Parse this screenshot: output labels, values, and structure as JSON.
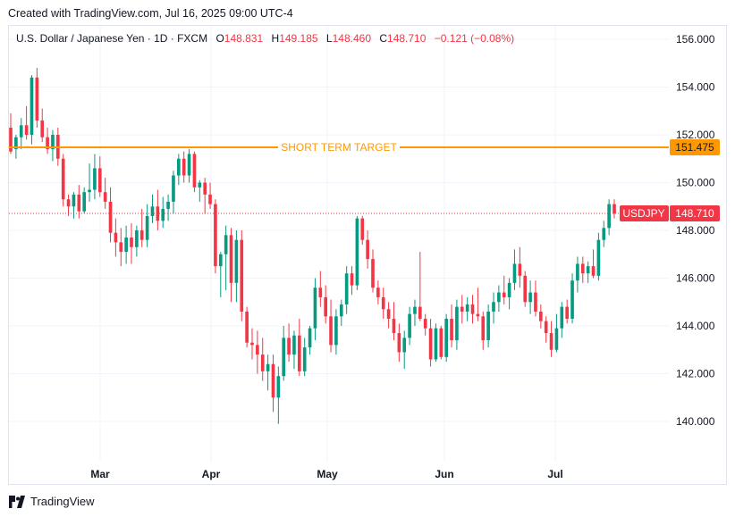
{
  "header": {
    "created_text": "Created with TradingView.com, Jul 16, 2025 09:00 UTC-4"
  },
  "legend": {
    "symbol": "U.S. Dollar / Japanese Yen · 1D · FXCM",
    "o_label": "O",
    "o_value": "148.831",
    "h_label": "H",
    "h_value": "149.185",
    "l_label": "L",
    "l_value": "148.460",
    "c_label": "C",
    "c_value": "148.710",
    "change": "−0.121 (−0.08%)"
  },
  "footer": {
    "brand": "TradingView"
  },
  "colors": {
    "up": "#089981",
    "down": "#f23645",
    "target": "#ff9800",
    "grid": "#f0f3fa"
  },
  "chart_data": {
    "type": "candlestick",
    "y_ticks": [
      "156.000",
      "154.000",
      "152.000",
      "150.000",
      "148.000",
      "146.000",
      "144.000",
      "142.000",
      "140.000"
    ],
    "y_tick_values": [
      156,
      154,
      152,
      150,
      148,
      146,
      144,
      142,
      140
    ],
    "x_labels": [
      "Mar",
      "Apr",
      "May",
      "Jun",
      "Jul"
    ],
    "ylim": [
      138.5,
      157.2
    ],
    "horizontal_line": {
      "label": "SHORT TERM TARGET",
      "value": 151.475,
      "value_label": "151.475"
    },
    "last_price": {
      "symbol": "USDJPY",
      "value": 148.71,
      "value_label": "148.710"
    },
    "candles": [
      [
        152.3,
        152.9,
        151.2,
        151.3
      ],
      [
        151.4,
        152.0,
        151.0,
        151.9
      ],
      [
        151.9,
        152.7,
        151.4,
        152.4
      ],
      [
        152.4,
        153.2,
        151.8,
        152.0
      ],
      [
        152.0,
        154.5,
        151.6,
        154.4
      ],
      [
        154.4,
        154.8,
        152.3,
        152.6
      ],
      [
        152.6,
        153.1,
        151.7,
        151.9
      ],
      [
        151.9,
        152.3,
        151.2,
        151.4
      ],
      [
        151.4,
        152.2,
        150.9,
        152.0
      ],
      [
        152.0,
        152.3,
        150.7,
        151.0
      ],
      [
        151.0,
        151.2,
        149.0,
        149.3
      ],
      [
        149.3,
        149.5,
        148.6,
        149.0
      ],
      [
        149.0,
        149.6,
        148.5,
        149.5
      ],
      [
        149.5,
        149.9,
        148.5,
        148.8
      ],
      [
        148.8,
        149.8,
        148.7,
        149.6
      ],
      [
        149.6,
        150.8,
        149.2,
        149.7
      ],
      [
        149.7,
        151.2,
        149.3,
        150.6
      ],
      [
        150.6,
        151.1,
        149.4,
        149.6
      ],
      [
        149.6,
        150.2,
        148.9,
        149.2
      ],
      [
        149.2,
        149.8,
        147.5,
        147.9
      ],
      [
        147.9,
        148.5,
        146.9,
        147.5
      ],
      [
        147.5,
        148.1,
        146.5,
        147.1
      ],
      [
        147.1,
        148.2,
        146.6,
        147.7
      ],
      [
        147.7,
        148.3,
        146.6,
        147.3
      ],
      [
        147.3,
        148.2,
        146.9,
        148.0
      ],
      [
        148.0,
        148.9,
        147.3,
        147.6
      ],
      [
        147.6,
        149.1,
        147.3,
        148.6
      ],
      [
        148.6,
        149.5,
        148.3,
        149.0
      ],
      [
        149.0,
        149.7,
        148.0,
        148.4
      ],
      [
        148.4,
        149.4,
        148.1,
        148.9
      ],
      [
        148.9,
        149.5,
        148.4,
        149.2
      ],
      [
        149.2,
        150.5,
        148.7,
        150.3
      ],
      [
        150.3,
        151.2,
        149.9,
        151.0
      ],
      [
        151.0,
        151.3,
        150.0,
        150.3
      ],
      [
        150.3,
        151.4,
        150.0,
        151.2
      ],
      [
        151.2,
        151.3,
        149.6,
        149.8
      ],
      [
        149.8,
        150.1,
        149.2,
        150.0
      ],
      [
        150.0,
        150.2,
        148.7,
        149.5
      ],
      [
        149.5,
        150.0,
        148.9,
        149.1
      ],
      [
        149.1,
        149.3,
        146.2,
        146.5
      ],
      [
        146.5,
        147.1,
        145.2,
        147.0
      ],
      [
        147.0,
        148.2,
        145.5,
        147.8
      ],
      [
        147.8,
        148.1,
        145.0,
        145.8
      ],
      [
        145.8,
        148.0,
        145.0,
        147.6
      ],
      [
        147.6,
        148.0,
        144.2,
        144.6
      ],
      [
        144.6,
        144.8,
        143.1,
        143.3
      ],
      [
        143.3,
        143.9,
        142.6,
        143.2
      ],
      [
        143.2,
        143.8,
        142.0,
        142.8
      ],
      [
        142.8,
        143.5,
        141.7,
        142.1
      ],
      [
        142.1,
        142.8,
        141.3,
        142.4
      ],
      [
        142.4,
        142.8,
        140.4,
        141.0
      ],
      [
        141.0,
        142.3,
        139.9,
        141.9
      ],
      [
        141.9,
        144.0,
        141.7,
        143.5
      ],
      [
        143.5,
        144.1,
        142.5,
        142.8
      ],
      [
        142.8,
        143.8,
        142.2,
        143.6
      ],
      [
        143.6,
        144.3,
        141.9,
        142.1
      ],
      [
        142.1,
        143.5,
        141.9,
        143.1
      ],
      [
        143.1,
        144.0,
        142.8,
        143.9
      ],
      [
        143.9,
        146.0,
        143.4,
        145.6
      ],
      [
        145.6,
        146.3,
        144.8,
        145.2
      ],
      [
        145.2,
        145.7,
        144.1,
        144.4
      ],
      [
        144.4,
        145.1,
        142.9,
        143.2
      ],
      [
        143.2,
        144.7,
        142.8,
        144.4
      ],
      [
        144.4,
        145.1,
        144.0,
        144.9
      ],
      [
        144.9,
        146.5,
        144.5,
        146.2
      ],
      [
        146.2,
        146.5,
        145.3,
        145.7
      ],
      [
        145.7,
        148.6,
        145.5,
        148.5
      ],
      [
        148.5,
        148.6,
        147.4,
        147.6
      ],
      [
        147.6,
        148.0,
        146.4,
        146.8
      ],
      [
        146.8,
        147.2,
        145.4,
        145.6
      ],
      [
        145.6,
        145.9,
        144.9,
        145.2
      ],
      [
        145.2,
        145.6,
        144.3,
        144.7
      ],
      [
        144.7,
        145.0,
        143.9,
        144.3
      ],
      [
        144.3,
        145.0,
        143.4,
        143.7
      ],
      [
        143.7,
        144.1,
        142.5,
        142.9
      ],
      [
        142.9,
        143.8,
        142.2,
        143.5
      ],
      [
        143.5,
        144.8,
        143.2,
        144.5
      ],
      [
        144.5,
        145.1,
        144.0,
        144.8
      ],
      [
        144.8,
        147.1,
        144.2,
        144.3
      ],
      [
        144.3,
        144.5,
        143.6,
        143.9
      ],
      [
        143.9,
        144.3,
        142.3,
        142.6
      ],
      [
        142.6,
        144.1,
        142.5,
        143.9
      ],
      [
        143.9,
        144.0,
        142.6,
        142.7
      ],
      [
        142.7,
        144.5,
        142.5,
        144.3
      ],
      [
        144.3,
        144.9,
        143.1,
        143.4
      ],
      [
        143.4,
        145.1,
        143.0,
        144.8
      ],
      [
        144.8,
        145.3,
        144.1,
        144.6
      ],
      [
        144.6,
        145.2,
        144.2,
        144.9
      ],
      [
        144.9,
        145.3,
        144.1,
        144.5
      ],
      [
        144.5,
        145.6,
        144.2,
        144.4
      ],
      [
        144.4,
        144.6,
        143.0,
        143.4
      ],
      [
        143.4,
        144.9,
        143.1,
        144.6
      ],
      [
        144.6,
        145.4,
        144.1,
        145.0
      ],
      [
        145.0,
        145.7,
        144.6,
        145.4
      ],
      [
        145.4,
        146.1,
        144.9,
        145.2
      ],
      [
        145.2,
        146.0,
        144.7,
        145.8
      ],
      [
        145.8,
        147.2,
        145.5,
        146.6
      ],
      [
        146.6,
        147.3,
        145.6,
        146.1
      ],
      [
        146.1,
        146.3,
        144.8,
        145.0
      ],
      [
        145.0,
        145.9,
        144.5,
        145.4
      ],
      [
        145.4,
        145.9,
        144.4,
        144.6
      ],
      [
        144.6,
        144.9,
        143.9,
        144.2
      ],
      [
        144.2,
        144.4,
        143.3,
        143.7
      ],
      [
        143.7,
        144.2,
        142.7,
        143.0
      ],
      [
        143.0,
        144.5,
        142.9,
        143.9
      ],
      [
        143.9,
        145.0,
        143.5,
        144.8
      ],
      [
        144.8,
        145.1,
        144.1,
        144.3
      ],
      [
        144.3,
        146.2,
        144.1,
        145.9
      ],
      [
        145.9,
        146.9,
        145.4,
        146.6
      ],
      [
        146.6,
        146.9,
        145.8,
        146.2
      ],
      [
        146.2,
        146.7,
        145.8,
        146.5
      ],
      [
        146.5,
        147.2,
        146.0,
        146.1
      ],
      [
        146.1,
        147.9,
        145.9,
        147.6
      ],
      [
        147.6,
        148.4,
        147.3,
        148.1
      ],
      [
        148.1,
        149.3,
        147.8,
        149.1
      ],
      [
        149.1,
        149.3,
        148.5,
        148.7
      ]
    ]
  }
}
